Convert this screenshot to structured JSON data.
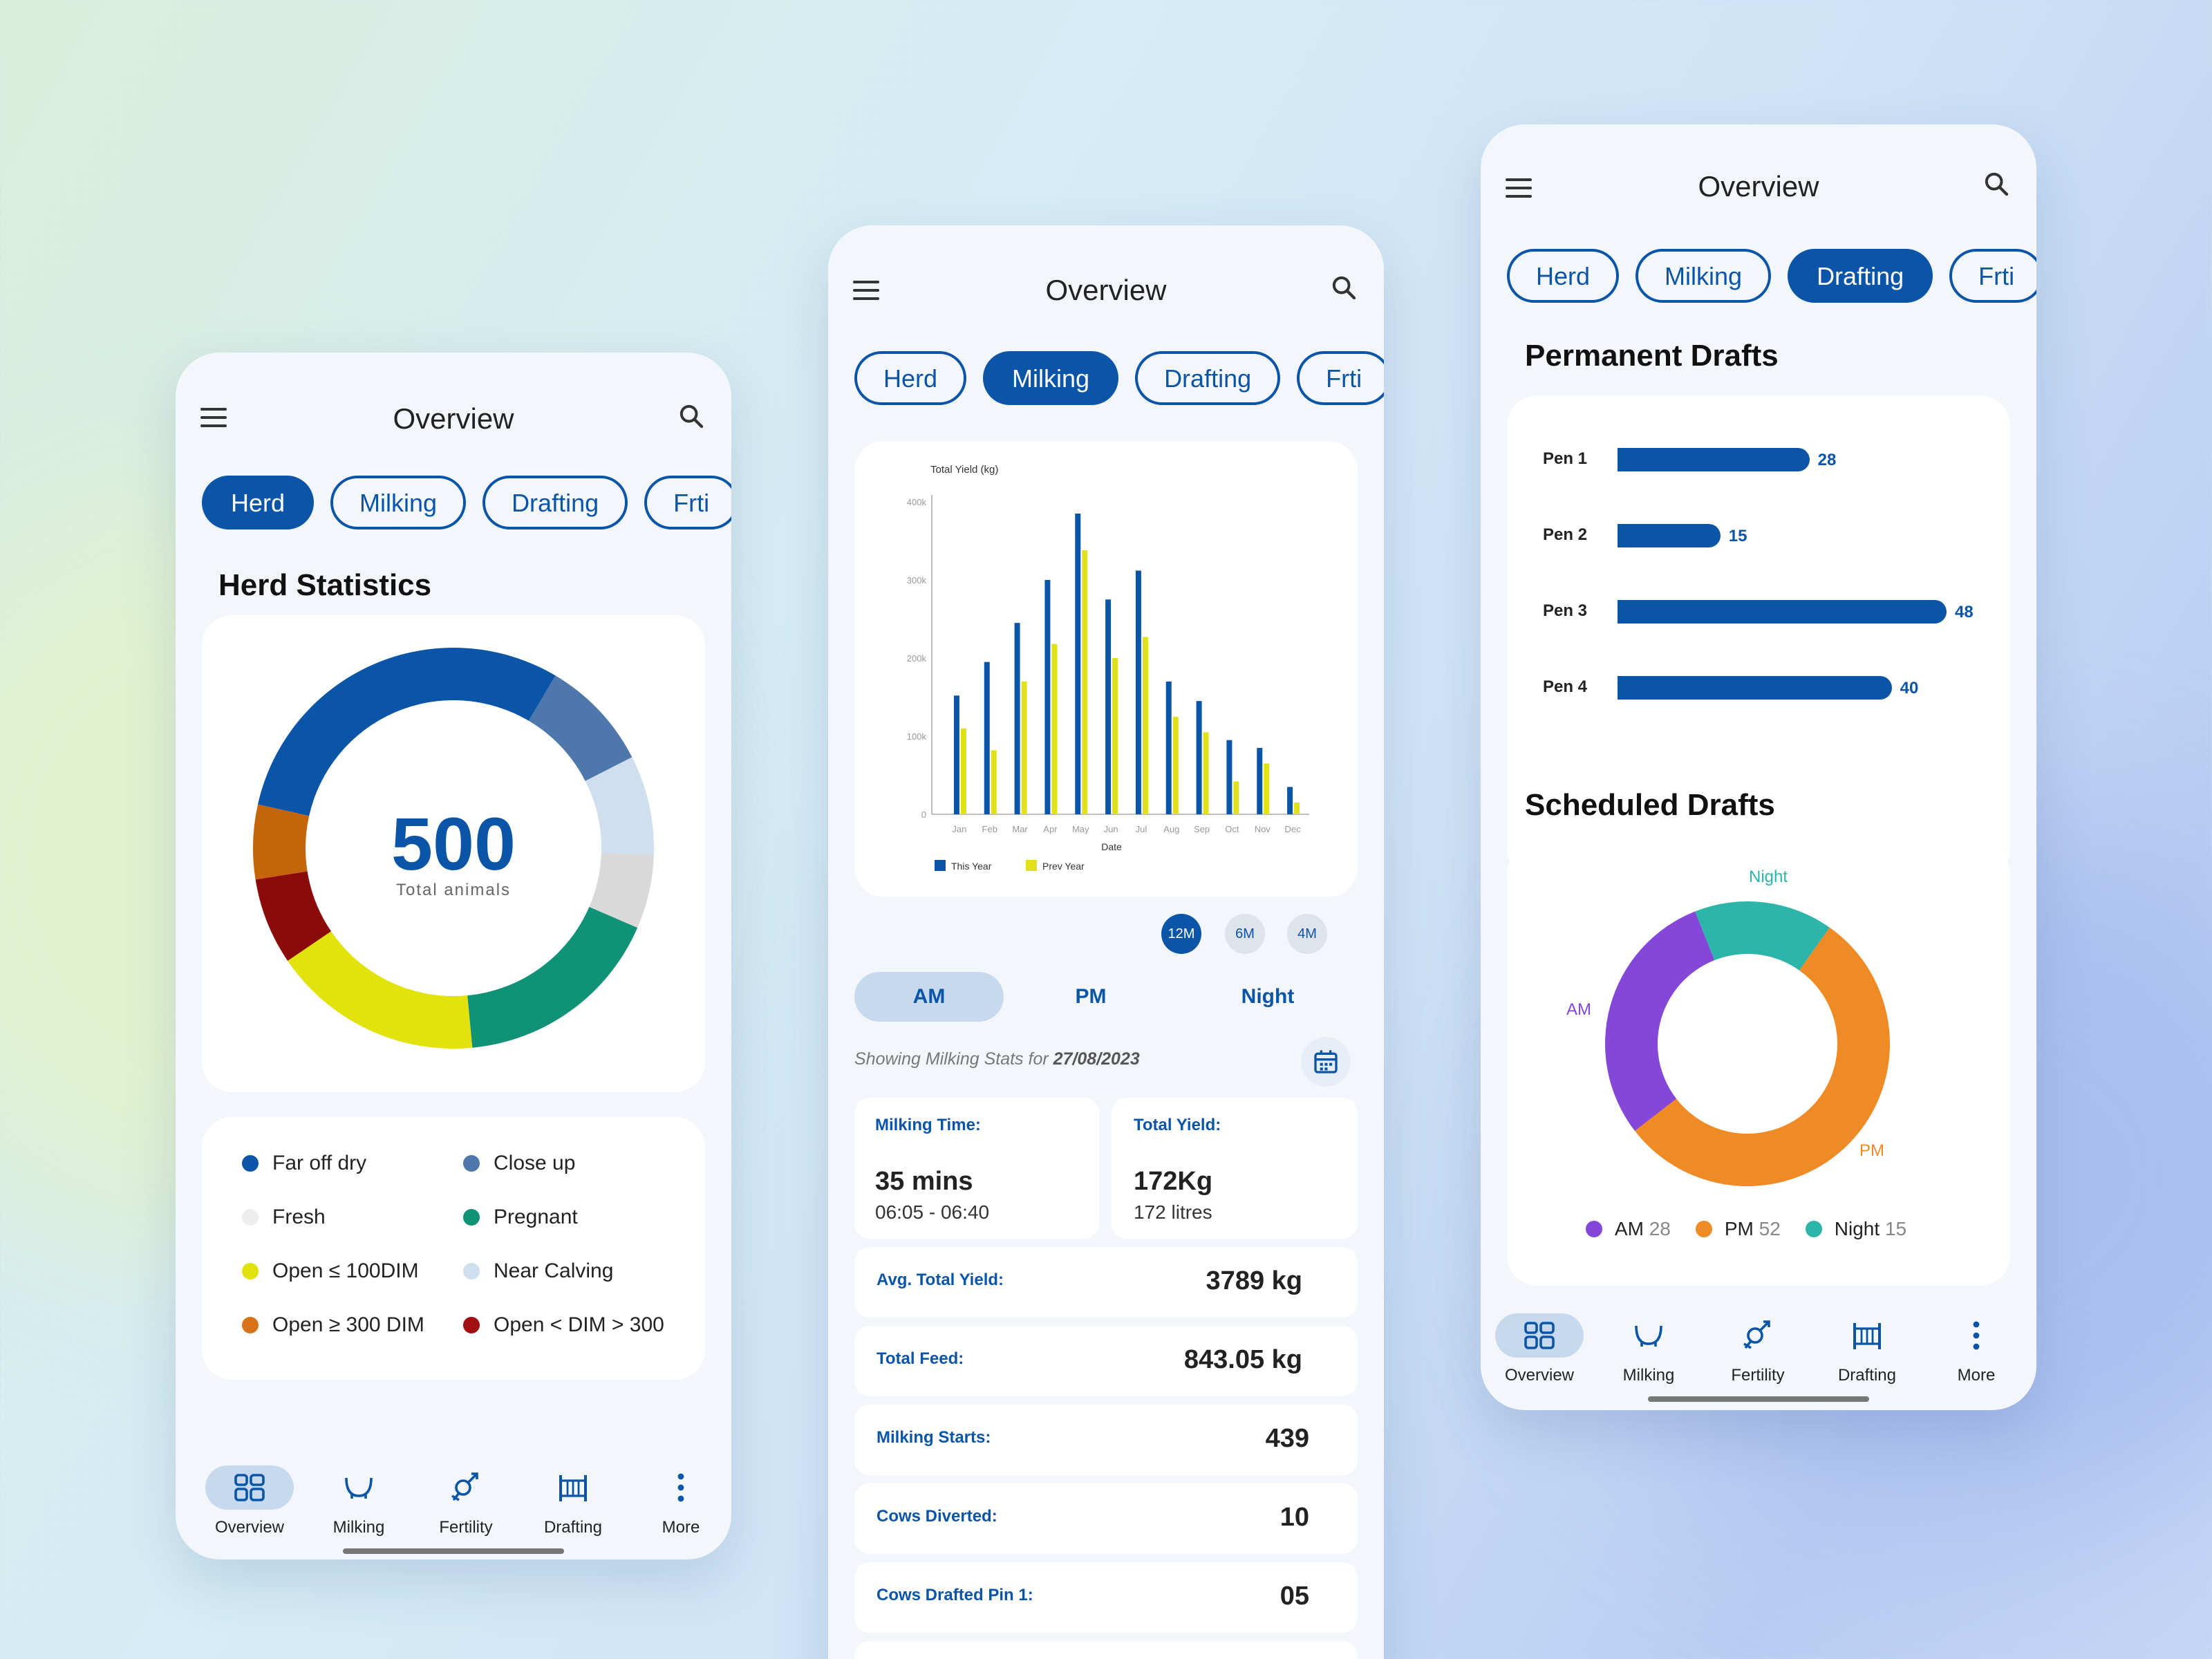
{
  "colors": {
    "primary": "#0b55a8",
    "this_year": "#0b55a8",
    "prev_year": "#e1e11b",
    "am": "#8447d8",
    "pm": "#f08a24",
    "night": "#2db5a9"
  },
  "screen1": {
    "title": "Overview",
    "tabs": [
      "Herd",
      "Milking",
      "Drafting",
      "Frti"
    ],
    "active_tab": "Herd",
    "section_title": "Herd Statistics",
    "total_value": "500",
    "total_label": "Total animals",
    "donut": [
      {
        "name": "Far off dry",
        "value": 30,
        "color": "#0b55a8"
      },
      {
        "name": "Close up",
        "value": 9,
        "color": "#4e78ac"
      },
      {
        "name": "Near Calving",
        "value": 8,
        "color": "#cfdff0"
      },
      {
        "name": "Fresh",
        "value": 6,
        "color": "#d9d9d9"
      },
      {
        "name": "Pregnant",
        "value": 17,
        "color": "#109277"
      },
      {
        "name": "Open ≤ 100DIM",
        "value": 17,
        "color": "#e2e20c"
      },
      {
        "name": "Open < DIM > 300",
        "value": 7,
        "color": "#8b0b0b"
      },
      {
        "name": "Open ≥ 300 DIM",
        "value": 6,
        "color": "#c4650c"
      }
    ],
    "legend": [
      {
        "label": "Far off dry",
        "color": "#0b55a8"
      },
      {
        "label": "Close up",
        "color": "#4e78ac"
      },
      {
        "label": "Fresh",
        "color": "#eeeeee"
      },
      {
        "label": "Pregnant",
        "color": "#109277"
      },
      {
        "label": "Open ≤ 100DIM",
        "color": "#e2e20c"
      },
      {
        "label": "Near Calving",
        "color": "#cfdff0"
      },
      {
        "label": "Open ≥ 300 DIM",
        "color": "#d8731a"
      },
      {
        "label": "Open < DIM > 300",
        "color": "#a30f0f"
      }
    ],
    "nav": [
      "Overview",
      "Milking",
      "Fertility",
      "Drafting",
      "More"
    ]
  },
  "screen2": {
    "title": "Overview",
    "tabs": [
      "Herd",
      "Milking",
      "Drafting",
      "Frti"
    ],
    "active_tab": "Milking",
    "periods": [
      "12M",
      "6M",
      "4M"
    ],
    "active_period": "12M",
    "segments": [
      "AM",
      "PM",
      "Night"
    ],
    "active_segment": "AM",
    "showing_prefix": "Showing Milking Stats for ",
    "showing_date": "27/08/2023",
    "milking_time_label": "Milking Time:",
    "milking_time_value": "35 mins",
    "milking_time_range": "06:05 - 06:40",
    "total_yield_label": "Total Yield:",
    "total_yield_value": "172Kg",
    "total_yield_litres": "172 litres",
    "rows": [
      {
        "label": "Avg. Total Yield:",
        "value": "3789 kg"
      },
      {
        "label": "Total Feed:",
        "value": "843.05 kg"
      },
      {
        "label": "Milking Starts:",
        "value": "439"
      },
      {
        "label": "Cows Diverted:",
        "value": "10"
      },
      {
        "label": "Cows Drafted Pin 1:",
        "value": "05"
      }
    ]
  },
  "screen3": {
    "title": "Overview",
    "tabs": [
      "Herd",
      "Milking",
      "Drafting",
      "Frti"
    ],
    "active_tab": "Drafting",
    "permanent_title": "Permanent Drafts",
    "scheduled_title": "Scheduled Drafts",
    "nav": [
      "Overview",
      "Milking",
      "Fertility",
      "Drafting",
      "More"
    ]
  },
  "chart_data": [
    {
      "type": "bar",
      "ylabel": "Total Yield (kg)",
      "xlabel": "Date",
      "categories": [
        "Jan",
        "Feb",
        "Mar",
        "Apr",
        "May",
        "Jun",
        "Jul",
        "Aug",
        "Sep",
        "Oct",
        "Nov",
        "Dec"
      ],
      "yticks": [
        "0",
        "100k",
        "200k",
        "300k",
        "400k"
      ],
      "ylim": [
        0,
        400000
      ],
      "series": [
        {
          "name": "This Year",
          "values": [
            152000,
            195000,
            245000,
            300000,
            385000,
            275000,
            312000,
            170000,
            145000,
            95000,
            85000,
            35000
          ]
        },
        {
          "name": "Prev Year",
          "values": [
            110000,
            82000,
            170000,
            218000,
            338000,
            200000,
            227000,
            125000,
            105000,
            42000,
            65000,
            15000
          ]
        }
      ]
    },
    {
      "type": "bar",
      "orientation": "horizontal",
      "categories": [
        "Pen 1",
        "Pen 2",
        "Pen 3",
        "Pen 4"
      ],
      "values": [
        28,
        15,
        48,
        40
      ]
    },
    {
      "type": "pie",
      "donut": true,
      "slices": [
        {
          "label": "AM",
          "value": 28
        },
        {
          "label": "PM",
          "value": 52
        },
        {
          "label": "Night",
          "value": 15
        }
      ]
    }
  ]
}
